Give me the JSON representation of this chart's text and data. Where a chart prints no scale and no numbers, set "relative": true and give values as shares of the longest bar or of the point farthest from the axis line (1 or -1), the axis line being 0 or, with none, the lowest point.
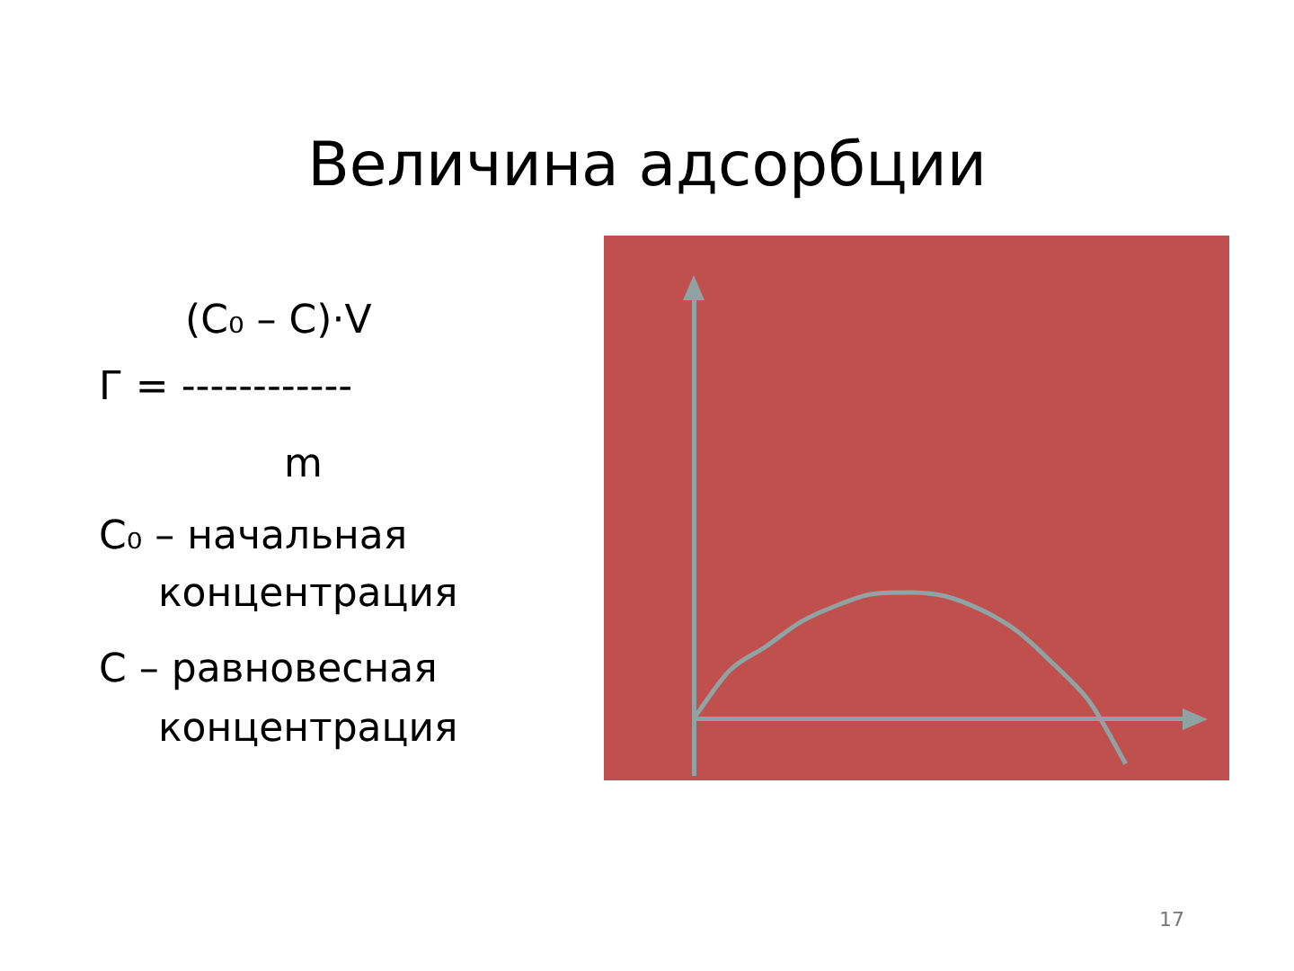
{
  "chart_data": {
    "type": "line",
    "title": "Величина адсорбции",
    "relative": true,
    "categories": [
      null,
      null,
      null,
      null,
      null,
      null,
      null,
      null,
      null,
      null,
      null,
      null,
      null
    ],
    "values": [
      0,
      0.38,
      0.57,
      0.77,
      0.9,
      0.99,
      1.0,
      0.97,
      0.86,
      0.69,
      0.43,
      0.13,
      -0.36
    ],
    "color": "#8fa3a3",
    "annotations": [
      "(C₀ – C)·V",
      "Г =  ------------",
      "m",
      "C₀ – начальная",
      "концентрация",
      "C – равновесная",
      "концентрация",
      "17"
    ]
  }
}
